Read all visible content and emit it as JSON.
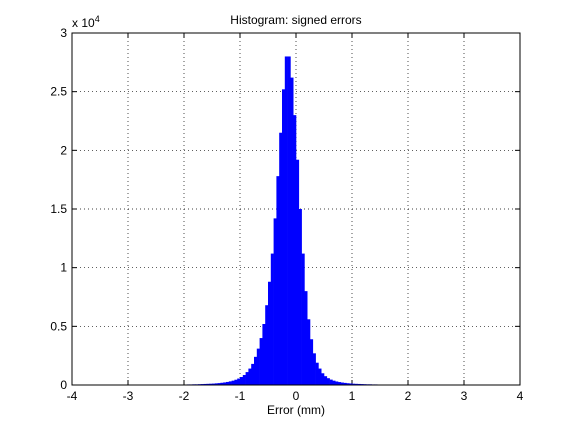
{
  "chart_data": {
    "type": "histogram",
    "title": "Histogram: signed errors",
    "x_label": "Error (mm)",
    "y_scale_label": "x 10",
    "y_scale_exponent": "4",
    "color": "#0000ff",
    "bins": [
      -2.3,
      -2.25,
      -2.2,
      -2.15,
      -2.1,
      -2.05,
      -2.0,
      -1.95,
      -1.9,
      -1.85,
      -1.8,
      -1.75,
      -1.7,
      -1.65,
      -1.6,
      -1.55,
      -1.5,
      -1.45,
      -1.4,
      -1.35,
      -1.3,
      -1.25,
      -1.2,
      -1.15,
      -1.1,
      -1.05,
      -1.0,
      -0.95,
      -0.9,
      -0.85,
      -0.8,
      -0.75,
      -0.7,
      -0.65,
      -0.6,
      -0.55,
      -0.5,
      -0.45,
      -0.4,
      -0.35,
      -0.3,
      -0.25,
      -0.2,
      -0.15,
      -0.1,
      -0.05,
      0.0,
      0.05,
      0.1,
      0.15,
      0.2,
      0.25,
      0.3,
      0.35,
      0.4,
      0.45,
      0.5,
      0.55,
      0.6,
      0.65,
      0.7,
      0.75,
      0.8,
      0.85,
      0.9,
      0.95,
      1.0,
      1.05,
      1.1,
      1.15,
      1.2,
      1.25,
      1.3,
      1.35,
      1.4,
      1.45,
      1.5,
      1.55,
      1.6,
      1.65,
      1.7,
      1.75,
      1.8,
      1.85,
      1.9
    ],
    "values": [
      0.002,
      0.002,
      0.003,
      0.003,
      0.003,
      0.004,
      0.004,
      0.005,
      0.005,
      0.006,
      0.006,
      0.007,
      0.008,
      0.009,
      0.01,
      0.011,
      0.012,
      0.014,
      0.016,
      0.019,
      0.022,
      0.026,
      0.031,
      0.037,
      0.045,
      0.055,
      0.068,
      0.085,
      0.11,
      0.14,
      0.18,
      0.24,
      0.31,
      0.4,
      0.52,
      0.68,
      0.88,
      1.12,
      1.42,
      1.78,
      2.15,
      2.52,
      2.8,
      2.8,
      2.62,
      2.3,
      1.92,
      1.5,
      1.12,
      0.8,
      0.56,
      0.39,
      0.27,
      0.19,
      0.14,
      0.1,
      0.075,
      0.058,
      0.046,
      0.037,
      0.03,
      0.025,
      0.021,
      0.018,
      0.015,
      0.013,
      0.011,
      0.01,
      0.009,
      0.008,
      0.007,
      0.006,
      0.006,
      0.005,
      0.005,
      0.004,
      0.004,
      0.004,
      0.003,
      0.003,
      0.003,
      0.003,
      0.002,
      0.002
    ],
    "xlim": [
      -4,
      4
    ],
    "xticks": [
      -4,
      -3,
      -2,
      -1,
      0,
      1,
      2,
      3,
      4
    ],
    "ylim": [
      0,
      3
    ],
    "yticks": [
      0,
      0.5,
      1,
      1.5,
      2,
      2.5,
      3
    ],
    "grid": true
  }
}
